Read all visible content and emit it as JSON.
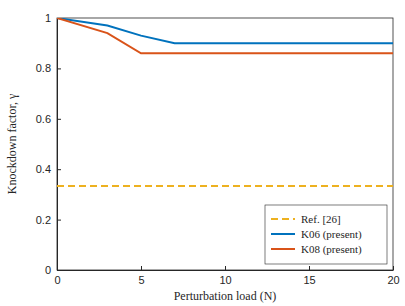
{
  "chart_data": {
    "type": "line",
    "x_label": "Perturbation load (N)",
    "y_label": "Knockdown factor, γ",
    "xlim": [
      0,
      20
    ],
    "xticks": [
      0,
      5,
      10,
      15,
      20
    ],
    "ylim": [
      0,
      1
    ],
    "yticks": [
      0,
      0.2,
      0.4,
      0.6,
      0.8,
      1
    ],
    "grid": false,
    "legend": "lower right",
    "series": [
      {
        "name": "Ref. [26]",
        "color": "#EDB120",
        "line_style": "dashed",
        "x": [
          0,
          20
        ],
        "values": [
          0.333,
          0.333
        ]
      },
      {
        "name": "K06 (present)",
        "color": "#0072BD",
        "line_style": "solid",
        "x": [
          0,
          3,
          5,
          7,
          10,
          20
        ],
        "values": [
          1,
          0.97,
          0.93,
          0.9,
          0.9,
          0.9
        ]
      },
      {
        "name": "K08 (present)",
        "color": "#D95319",
        "line_style": "solid",
        "x": [
          0,
          3,
          5,
          10,
          20
        ],
        "values": [
          1,
          0.94,
          0.86,
          0.86,
          0.86
        ]
      }
    ]
  }
}
